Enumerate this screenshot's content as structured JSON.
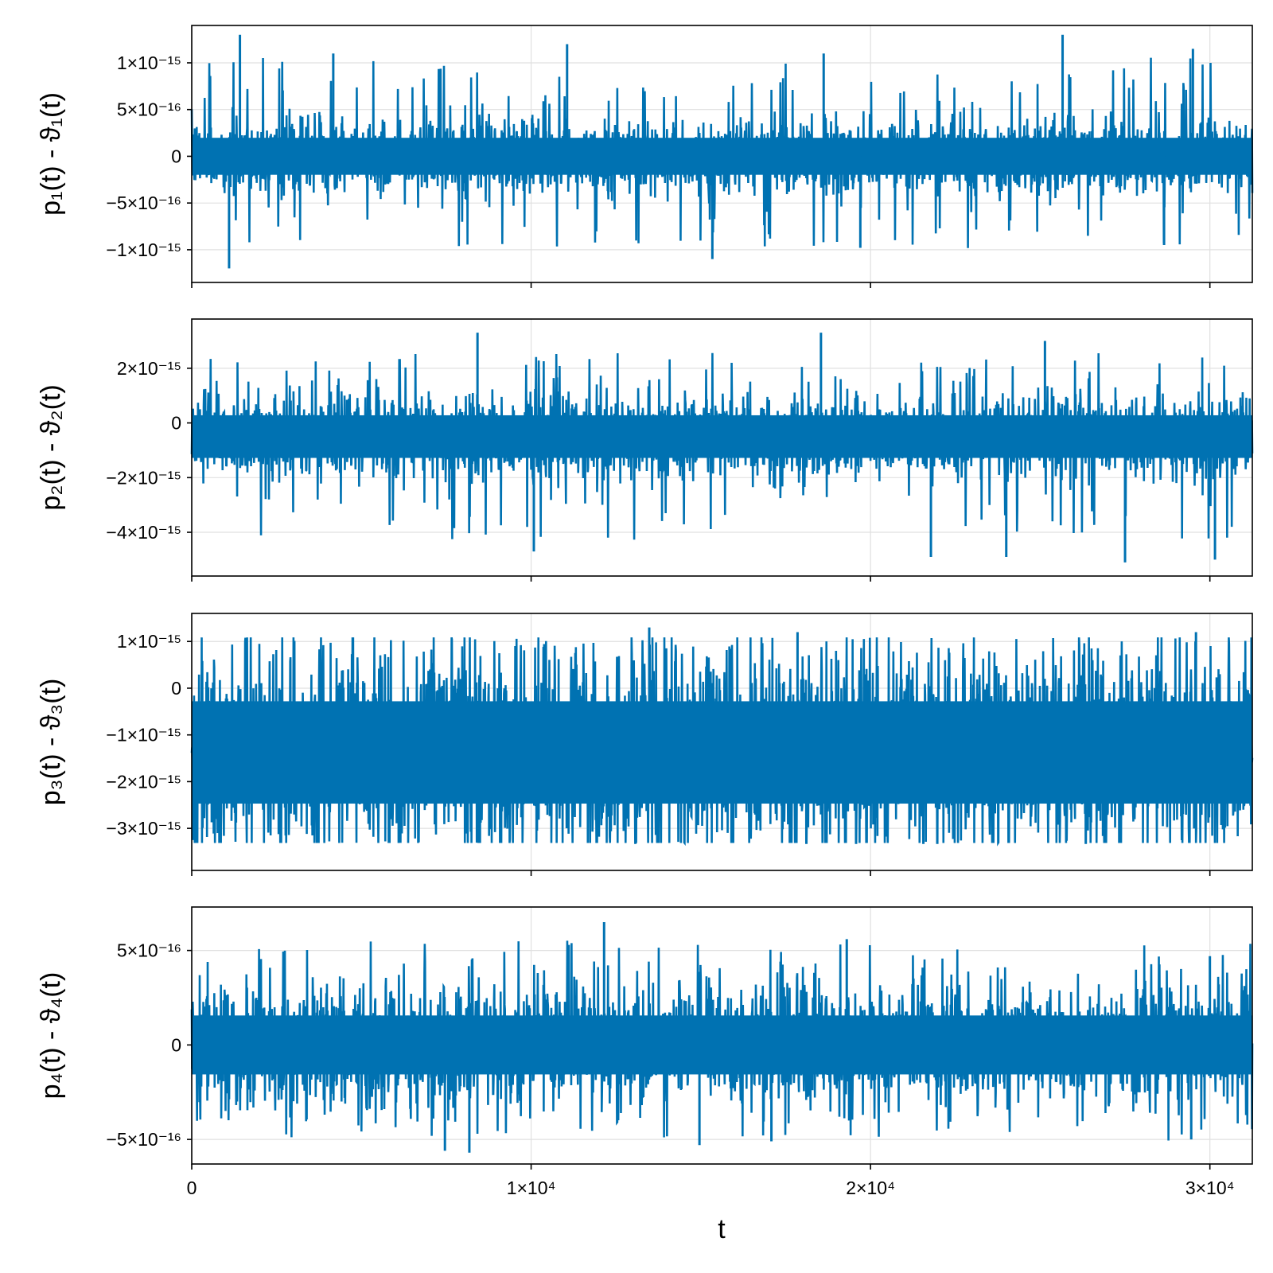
{
  "colors": {
    "series": "#0072b2",
    "grid": "#e0e0e0",
    "frame": "#000000",
    "background": "#ffffff"
  },
  "chart_data": [
    {
      "type": "line",
      "ylabel": "p₁(t) - ϑ₁(t)",
      "xlabel": "",
      "xlim": [
        0,
        31250
      ],
      "ylim": [
        -1.35e-15,
        1.4e-15
      ],
      "grid": true,
      "xticks": [
        {
          "value": 0,
          "label": ""
        },
        {
          "value": 10000,
          "label": ""
        },
        {
          "value": 20000,
          "label": ""
        },
        {
          "value": 30000,
          "label": ""
        }
      ],
      "yticks": [
        {
          "value": 1e-15,
          "label": "1×10⁻¹⁵"
        },
        {
          "value": 5e-16,
          "label": "5×10⁻¹⁶"
        },
        {
          "value": 0,
          "label": "0"
        },
        {
          "value": -5e-16,
          "label": "−5×10⁻¹⁶"
        },
        {
          "value": -1e-15,
          "label": "−1×10⁻¹⁵"
        }
      ],
      "series": [
        {
          "color": "#0072b2",
          "envelope": {
            "typical_max": 3.3e-16,
            "typical_min": -3.3e-16,
            "extreme_max": 1.3e-15,
            "extreme_min": -1.2e-15
          },
          "spikes": [
            {
              "x": 1420,
              "y": 1.3e-15
            },
            {
              "x": 1100,
              "y": -1.2e-15
            },
            {
              "x": 4170,
              "y": 1.1e-15
            },
            {
              "x": 11060,
              "y": 1.2e-15
            },
            {
              "x": 15340,
              "y": -1.1e-15
            },
            {
              "x": 25660,
              "y": 1.3e-15
            },
            {
              "x": 29500,
              "y": 1.15e-15
            },
            {
              "x": 28650,
              "y": -9.5e-16
            },
            {
              "x": 19700,
              "y": -9.8e-16
            },
            {
              "x": 18620,
              "y": 1.1e-15
            }
          ]
        }
      ]
    },
    {
      "type": "line",
      "ylabel": "p₂(t) - ϑ₂(t)",
      "xlabel": "",
      "xlim": [
        0,
        31250
      ],
      "ylim": [
        -5.6e-15,
        3.8e-15
      ],
      "grid": true,
      "xticks": [
        {
          "value": 0,
          "label": ""
        },
        {
          "value": 10000,
          "label": ""
        },
        {
          "value": 20000,
          "label": ""
        },
        {
          "value": 30000,
          "label": ""
        }
      ],
      "yticks": [
        {
          "value": 2e-15,
          "label": "2×10⁻¹⁵"
        },
        {
          "value": 0,
          "label": "0"
        },
        {
          "value": -2e-15,
          "label": "−2×10⁻¹⁵"
        },
        {
          "value": -4e-15,
          "label": "−4×10⁻¹⁵"
        }
      ],
      "series": [
        {
          "color": "#0072b2",
          "envelope": {
            "typical_max": 8e-16,
            "typical_min": -1.8e-15,
            "extreme_max": 3.3e-15,
            "extreme_min": -5.1e-15
          },
          "spikes": [
            {
              "x": 8420,
              "y": 3.3e-15
            },
            {
              "x": 18540,
              "y": 3.3e-15
            },
            {
              "x": 25140,
              "y": 3e-15
            },
            {
              "x": 27500,
              "y": -5.1e-15
            },
            {
              "x": 21780,
              "y": -4.9e-15
            },
            {
              "x": 24000,
              "y": -4.9e-15
            },
            {
              "x": 10080,
              "y": -4.7e-15
            },
            {
              "x": 30150,
              "y": -5e-15
            }
          ]
        }
      ]
    },
    {
      "type": "line",
      "ylabel": "p₃(t) - ϑ₃(t)",
      "xlabel": "",
      "xlim": [
        0,
        31250
      ],
      "ylim": [
        -3.9e-15,
        1.6e-15
      ],
      "grid": true,
      "xticks": [
        {
          "value": 0,
          "label": ""
        },
        {
          "value": 10000,
          "label": ""
        },
        {
          "value": 20000,
          "label": ""
        },
        {
          "value": 30000,
          "label": ""
        }
      ],
      "yticks": [
        {
          "value": 1e-15,
          "label": "1×10⁻¹⁵"
        },
        {
          "value": 0,
          "label": "0"
        },
        {
          "value": -1e-15,
          "label": "−1×10⁻¹⁵"
        },
        {
          "value": -2e-15,
          "label": "−2×10⁻¹⁵"
        },
        {
          "value": -3e-15,
          "label": "−3×10⁻¹⁵"
        }
      ],
      "series": [
        {
          "color": "#0072b2",
          "envelope": {
            "typical_max": 4.5e-16,
            "typical_min": -3.2e-15,
            "extreme_max": 1.3e-15,
            "extreme_min": -3.6e-15
          },
          "spikes": [
            {
              "x": 13480,
              "y": 1.3e-15
            },
            {
              "x": 17850,
              "y": 1.2e-15
            },
            {
              "x": 29590,
              "y": 1.2e-15
            },
            {
              "x": 22930,
              "y": -1e-15
            },
            {
              "x": 25020,
              "y": -7.5e-16
            },
            {
              "x": 9770,
              "y": -1.2e-15
            }
          ]
        }
      ]
    },
    {
      "type": "line",
      "ylabel": "p₄(t) - ϑ₄(t)",
      "xlabel": "t",
      "xlim": [
        0,
        31250
      ],
      "ylim": [
        -6.3e-16,
        7.3e-16
      ],
      "grid": true,
      "xticks": [
        {
          "value": 0,
          "label": "0"
        },
        {
          "value": 10000,
          "label": "1×10⁴"
        },
        {
          "value": 20000,
          "label": "2×10⁴"
        },
        {
          "value": 30000,
          "label": "3×10⁴"
        }
      ],
      "yticks": [
        {
          "value": 5e-16,
          "label": "5×10⁻¹⁶"
        },
        {
          "value": 0,
          "label": "0"
        },
        {
          "value": -5e-16,
          "label": "−5×10⁻¹⁶"
        }
      ],
      "series": [
        {
          "color": "#0072b2",
          "envelope": {
            "typical_max": 2.6e-16,
            "typical_min": -2.6e-16,
            "extreme_max": 6.5e-16,
            "extreme_min": -5.7e-16
          },
          "spikes": [
            {
              "x": 12150,
              "y": 6.5e-16
            },
            {
              "x": 8180,
              "y": -5.7e-16
            },
            {
              "x": 7460,
              "y": -5.6e-16
            },
            {
              "x": 14960,
              "y": -5.3e-16
            },
            {
              "x": 19300,
              "y": 5.6e-16
            },
            {
              "x": 17080,
              "y": -5.1e-16
            },
            {
              "x": 29450,
              "y": -5e-16
            },
            {
              "x": 30000,
              "y": 4.7e-16
            }
          ]
        }
      ]
    }
  ]
}
